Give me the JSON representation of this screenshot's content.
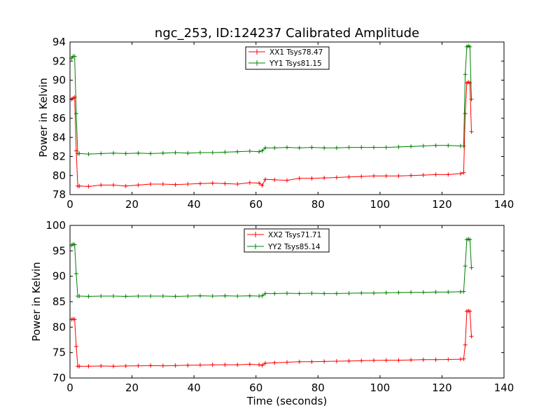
{
  "chart_data": [
    {
      "type": "line",
      "title": "ngc_253, ID:124237 Calibrated Amplitude",
      "xlabel": "",
      "ylabel": "Power in Kelvin",
      "xlim": [
        0,
        140
      ],
      "ylim": [
        78,
        94
      ],
      "xticks": [
        "0",
        "20",
        "40",
        "60",
        "80",
        "100",
        "120",
        "140"
      ],
      "yticks": [
        "78",
        "80",
        "82",
        "84",
        "86",
        "88",
        "90",
        "92",
        "94"
      ],
      "grid": false,
      "legend_position": "top-center",
      "series": [
        {
          "name": "XX1 Tsys78.47",
          "color": "#ff0000",
          "marker": "+",
          "points": [
            [
              0.5,
              88.0
            ],
            [
              1.0,
              88.1
            ],
            [
              1.5,
              88.2
            ],
            [
              2.0,
              82.6
            ],
            [
              2.5,
              78.9
            ],
            [
              3,
              78.9
            ],
            [
              6,
              78.85
            ],
            [
              10,
              79.0
            ],
            [
              14,
              79.0
            ],
            [
              18,
              78.9
            ],
            [
              22,
              79.0
            ],
            [
              26,
              79.1
            ],
            [
              30,
              79.1
            ],
            [
              34,
              79.05
            ],
            [
              38,
              79.1
            ],
            [
              42,
              79.15
            ],
            [
              46,
              79.2
            ],
            [
              50,
              79.15
            ],
            [
              54,
              79.1
            ],
            [
              58,
              79.25
            ],
            [
              61,
              79.2
            ],
            [
              62,
              78.95
            ],
            [
              63,
              79.6
            ],
            [
              66,
              79.55
            ],
            [
              70,
              79.5
            ],
            [
              74,
              79.7
            ],
            [
              78,
              79.7
            ],
            [
              82,
              79.75
            ],
            [
              86,
              79.8
            ],
            [
              90,
              79.85
            ],
            [
              94,
              79.9
            ],
            [
              98,
              79.95
            ],
            [
              102,
              79.95
            ],
            [
              106,
              79.95
            ],
            [
              110,
              80.0
            ],
            [
              114,
              80.05
            ],
            [
              118,
              80.1
            ],
            [
              122,
              80.1
            ],
            [
              126,
              80.2
            ],
            [
              127,
              80.3
            ],
            [
              127.5,
              86.5
            ],
            [
              128,
              89.7
            ],
            [
              128.5,
              89.8
            ],
            [
              129,
              89.7
            ],
            [
              129.5,
              84.6
            ]
          ]
        },
        {
          "name": "YY1 Tsys81.15",
          "color": "#008000",
          "marker": "+",
          "points": [
            [
              0.5,
              92.3
            ],
            [
              1.0,
              92.5
            ],
            [
              1.5,
              92.5
            ],
            [
              2.0,
              86.5
            ],
            [
              2.5,
              82.3
            ],
            [
              3,
              82.3
            ],
            [
              6,
              82.25
            ],
            [
              10,
              82.3
            ],
            [
              14,
              82.35
            ],
            [
              18,
              82.3
            ],
            [
              22,
              82.35
            ],
            [
              26,
              82.3
            ],
            [
              30,
              82.35
            ],
            [
              34,
              82.4
            ],
            [
              38,
              82.35
            ],
            [
              42,
              82.4
            ],
            [
              46,
              82.4
            ],
            [
              50,
              82.45
            ],
            [
              54,
              82.5
            ],
            [
              58,
              82.55
            ],
            [
              61,
              82.5
            ],
            [
              62,
              82.6
            ],
            [
              63,
              82.9
            ],
            [
              66,
              82.9
            ],
            [
              70,
              82.95
            ],
            [
              74,
              82.9
            ],
            [
              78,
              82.95
            ],
            [
              82,
              82.9
            ],
            [
              86,
              82.9
            ],
            [
              90,
              82.95
            ],
            [
              94,
              82.95
            ],
            [
              98,
              82.95
            ],
            [
              102,
              82.95
            ],
            [
              106,
              83.0
            ],
            [
              110,
              83.05
            ],
            [
              114,
              83.1
            ],
            [
              118,
              83.15
            ],
            [
              122,
              83.15
            ],
            [
              126,
              83.1
            ],
            [
              127,
              83.1
            ],
            [
              127.5,
              90.6
            ],
            [
              128,
              93.5
            ],
            [
              128.5,
              93.6
            ],
            [
              129,
              93.5
            ],
            [
              129.5,
              88.0
            ]
          ]
        }
      ]
    },
    {
      "type": "line",
      "title": "",
      "xlabel": "Time (seconds)",
      "ylabel": "Power in Kelvin",
      "xlim": [
        0,
        140
      ],
      "ylim": [
        70,
        100
      ],
      "xticks": [
        "0",
        "20",
        "40",
        "60",
        "80",
        "100",
        "120",
        "140"
      ],
      "yticks": [
        "70",
        "75",
        "80",
        "85",
        "90",
        "95",
        "100"
      ],
      "grid": false,
      "legend_position": "top-center",
      "series": [
        {
          "name": "XX2 Tsys71.71",
          "color": "#ff0000",
          "marker": "+",
          "points": [
            [
              0.5,
              81.5
            ],
            [
              1.0,
              81.6
            ],
            [
              1.5,
              81.5
            ],
            [
              2.0,
              76.2
            ],
            [
              2.5,
              72.3
            ],
            [
              3,
              72.3
            ],
            [
              6,
              72.3
            ],
            [
              10,
              72.35
            ],
            [
              14,
              72.3
            ],
            [
              18,
              72.35
            ],
            [
              22,
              72.4
            ],
            [
              26,
              72.45
            ],
            [
              30,
              72.4
            ],
            [
              34,
              72.45
            ],
            [
              38,
              72.5
            ],
            [
              42,
              72.55
            ],
            [
              46,
              72.6
            ],
            [
              50,
              72.6
            ],
            [
              54,
              72.6
            ],
            [
              58,
              72.7
            ],
            [
              61,
              72.6
            ],
            [
              62,
              72.5
            ],
            [
              63,
              72.9
            ],
            [
              66,
              73.0
            ],
            [
              70,
              73.1
            ],
            [
              74,
              73.2
            ],
            [
              78,
              73.2
            ],
            [
              82,
              73.25
            ],
            [
              86,
              73.3
            ],
            [
              90,
              73.35
            ],
            [
              94,
              73.4
            ],
            [
              98,
              73.45
            ],
            [
              102,
              73.5
            ],
            [
              106,
              73.5
            ],
            [
              110,
              73.55
            ],
            [
              114,
              73.6
            ],
            [
              118,
              73.6
            ],
            [
              122,
              73.65
            ],
            [
              126,
              73.7
            ],
            [
              127,
              73.75
            ],
            [
              127.5,
              76.5
            ],
            [
              128,
              83.1
            ],
            [
              128.5,
              83.2
            ],
            [
              129,
              83.1
            ],
            [
              129.5,
              78.2
            ]
          ]
        },
        {
          "name": "YY2 Tsys85.14",
          "color": "#008000",
          "marker": "+",
          "points": [
            [
              0.5,
              96.1
            ],
            [
              1.0,
              96.3
            ],
            [
              1.5,
              96.2
            ],
            [
              2.0,
              90.5
            ],
            [
              2.5,
              86.1
            ],
            [
              3,
              86.1
            ],
            [
              6,
              86.05
            ],
            [
              10,
              86.1
            ],
            [
              14,
              86.1
            ],
            [
              18,
              86.05
            ],
            [
              22,
              86.1
            ],
            [
              26,
              86.1
            ],
            [
              30,
              86.1
            ],
            [
              34,
              86.05
            ],
            [
              38,
              86.1
            ],
            [
              42,
              86.15
            ],
            [
              46,
              86.1
            ],
            [
              50,
              86.15
            ],
            [
              54,
              86.1
            ],
            [
              58,
              86.15
            ],
            [
              61,
              86.1
            ],
            [
              62,
              86.15
            ],
            [
              63,
              86.6
            ],
            [
              66,
              86.6
            ],
            [
              70,
              86.65
            ],
            [
              74,
              86.6
            ],
            [
              78,
              86.65
            ],
            [
              82,
              86.6
            ],
            [
              86,
              86.6
            ],
            [
              90,
              86.65
            ],
            [
              94,
              86.7
            ],
            [
              98,
              86.7
            ],
            [
              102,
              86.75
            ],
            [
              106,
              86.8
            ],
            [
              110,
              86.85
            ],
            [
              114,
              86.85
            ],
            [
              118,
              86.9
            ],
            [
              122,
              86.9
            ],
            [
              126,
              86.95
            ],
            [
              127,
              87.0
            ],
            [
              127.5,
              92.0
            ],
            [
              128,
              97.2
            ],
            [
              128.5,
              97.3
            ],
            [
              129,
              97.2
            ],
            [
              129.5,
              91.7
            ]
          ]
        }
      ]
    }
  ]
}
